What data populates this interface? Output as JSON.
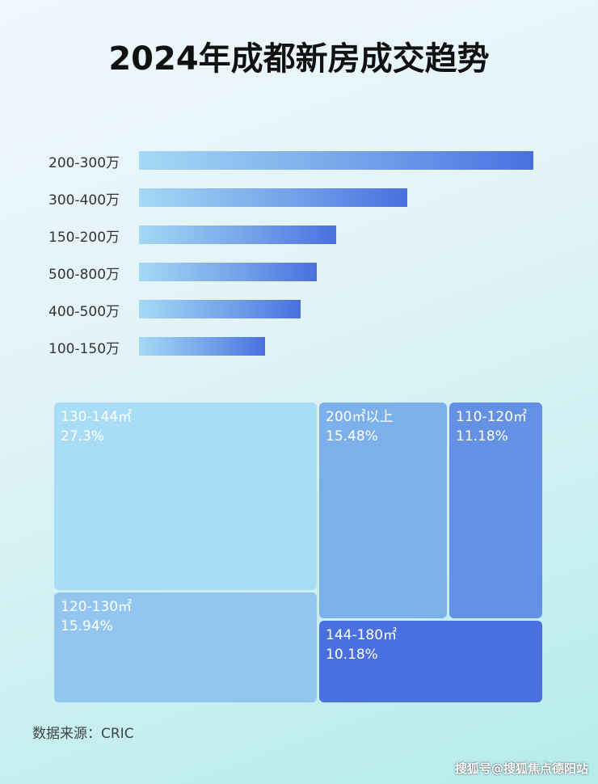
{
  "chart_data": [
    {
      "type": "bar",
      "orientation": "horizontal",
      "title": "2024年成都新房成交趋势",
      "categories": [
        "200-300万",
        "300-400万",
        "150-200万",
        "500-800万",
        "400-500万",
        "100-150万"
      ],
      "values": [
        100,
        68,
        50,
        45,
        41,
        32
      ],
      "value_unit": "relative bar length (no axis printed)",
      "bar_colors": [
        "#a4d9f5",
        "#4a6fe0"
      ]
    },
    {
      "type": "treemap",
      "items": [
        {
          "label": "130-144㎡",
          "value": "27.3%",
          "color": "#a9ddf6"
        },
        {
          "label": "200㎡以上",
          "value": "15.48%",
          "color": "#7cb0eb"
        },
        {
          "label": "110-120㎡",
          "value": "11.18%",
          "color": "#6591e4"
        },
        {
          "label": "120-130㎡",
          "value": "15.94%",
          "color": "#92c6f0"
        },
        {
          "label": "144-180㎡",
          "value": "10.18%",
          "color": "#4a6fe0"
        }
      ]
    }
  ],
  "source": "数据来源：CRIC",
  "watermark": "搜狐号@搜狐焦点德阳站"
}
